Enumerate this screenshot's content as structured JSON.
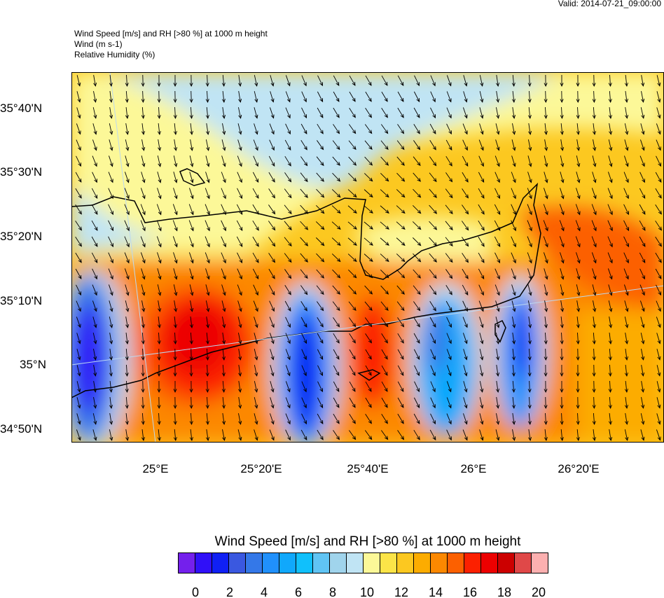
{
  "valid": "Valid: 2014-07-21_09:00:00",
  "titles": [
    "Wind Speed [m/s] and RH [>80 %] at 1000 m height",
    "Wind   (m s-1)",
    "Relative Humidity   (%)"
  ],
  "lat_labels": [
    "35°40'N",
    "35°30'N",
    "35°20'N",
    "35°10'N",
    "35°N",
    "34°50'N"
  ],
  "lon_labels": [
    "25°E",
    "25°20'E",
    "25°40'E",
    "26°E",
    "26°20'E"
  ],
  "colorbar": {
    "title": "Wind Speed [m/s] and RH [>80 %] at 1000 m height",
    "colors": [
      "#7420ec",
      "#3010f8",
      "#1020f4",
      "#3a58e0",
      "#3478e8",
      "#2090fc",
      "#10a8fc",
      "#10c0fc",
      "#60c4f4",
      "#a0d4ec",
      "#c0e4f4",
      "#fcf898",
      "#fce448",
      "#fcc820",
      "#fcac00",
      "#fc8800",
      "#fc6000",
      "#fc2000",
      "#ec0000",
      "#cc0000",
      "#e04848",
      "#fcb0b0"
    ],
    "labels": [
      "0",
      "2",
      "4",
      "6",
      "8",
      "10",
      "12",
      "14",
      "16",
      "18",
      "20"
    ]
  }
}
